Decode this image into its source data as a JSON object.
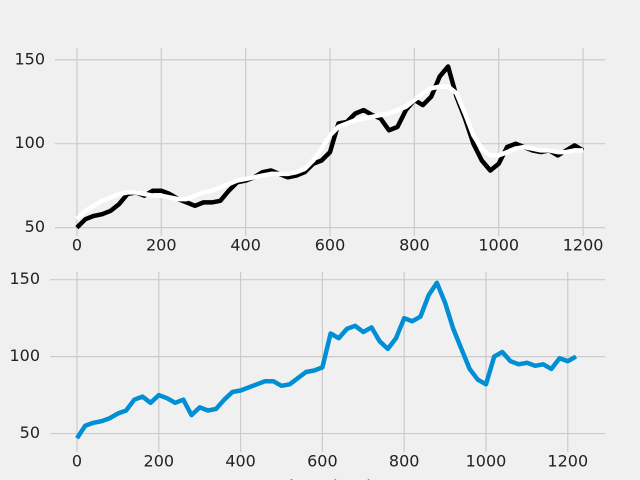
{
  "chart_data": [
    {
      "type": "line",
      "x": [
        0,
        20,
        40,
        60,
        80,
        100,
        120,
        140,
        160,
        180,
        200,
        220,
        240,
        260,
        280,
        300,
        320,
        340,
        360,
        380,
        400,
        420,
        440,
        460,
        480,
        500,
        520,
        540,
        560,
        580,
        600,
        620,
        640,
        660,
        680,
        700,
        720,
        740,
        760,
        780,
        800,
        820,
        840,
        860,
        880,
        900,
        920,
        940,
        960,
        980,
        1000,
        1020,
        1040,
        1060,
        1080,
        1100,
        1120,
        1140,
        1160,
        1180,
        1200
      ],
      "series": [
        {
          "color": "#000000",
          "values": [
            50,
            55,
            57,
            58,
            60,
            64,
            70,
            71,
            69,
            72,
            72,
            70,
            67,
            65,
            63,
            65,
            65,
            66,
            72,
            77,
            78,
            80,
            83,
            84,
            82,
            80,
            81,
            83,
            88,
            90,
            95,
            112,
            113,
            118,
            120,
            117,
            115,
            108,
            110,
            120,
            126,
            123,
            128,
            140,
            146,
            128,
            115,
            100,
            90,
            84,
            88,
            98,
            100,
            98,
            96,
            95,
            96,
            93,
            96,
            99,
            96
          ]
        },
        {
          "color": "#ffffff",
          "values": [
            55,
            60,
            63,
            66,
            68,
            70,
            71,
            71,
            70,
            69,
            69,
            68,
            67,
            67,
            69,
            71,
            72,
            74,
            76,
            78,
            79,
            80,
            81,
            82,
            82,
            82,
            83,
            85,
            90,
            97,
            105,
            110,
            112,
            114,
            115,
            116,
            117,
            118,
            120,
            122,
            126,
            130,
            133,
            134,
            134,
            130,
            118,
            105,
            97,
            93,
            93,
            95,
            97,
            98,
            97,
            96,
            96,
            95,
            95,
            96,
            96
          ]
        }
      ],
      "xlim": [
        -52,
        1252
      ],
      "ylim": [
        45,
        157
      ],
      "xticks": [
        0,
        200,
        400,
        600,
        800,
        1000,
        1200
      ],
      "yticks": [
        50,
        100,
        150
      ],
      "grid": true
    },
    {
      "type": "line",
      "xlabel": "time (ms)",
      "x": [
        0,
        20,
        40,
        60,
        80,
        100,
        120,
        140,
        160,
        180,
        200,
        220,
        240,
        260,
        280,
        300,
        320,
        340,
        360,
        380,
        400,
        420,
        440,
        460,
        480,
        500,
        520,
        540,
        560,
        580,
        600,
        620,
        640,
        660,
        680,
        700,
        720,
        740,
        760,
        780,
        800,
        820,
        840,
        860,
        880,
        900,
        920,
        940,
        960,
        980,
        1000,
        1020,
        1040,
        1060,
        1080,
        1100,
        1120,
        1140,
        1160,
        1180,
        1200,
        1220
      ],
      "series": [
        {
          "color": "#008fd5",
          "values": [
            47,
            55,
            57,
            58,
            60,
            63,
            65,
            72,
            74,
            70,
            75,
            73,
            70,
            72,
            62,
            67,
            65,
            66,
            72,
            77,
            78,
            80,
            82,
            84,
            84,
            81,
            82,
            86,
            90,
            91,
            93,
            115,
            112,
            118,
            120,
            116,
            119,
            110,
            105,
            112,
            125,
            123,
            126,
            140,
            148,
            135,
            118,
            105,
            92,
            85,
            82,
            100,
            103,
            97,
            95,
            96,
            94,
            95,
            92,
            99,
            97,
            100
          ]
        }
      ],
      "xlim": [
        -66,
        1291
      ],
      "ylim": [
        38,
        155
      ],
      "xticks": [
        0,
        200,
        400,
        600,
        800,
        1000,
        1200
      ],
      "yticks": [
        50,
        100,
        150
      ],
      "grid": true
    }
  ]
}
